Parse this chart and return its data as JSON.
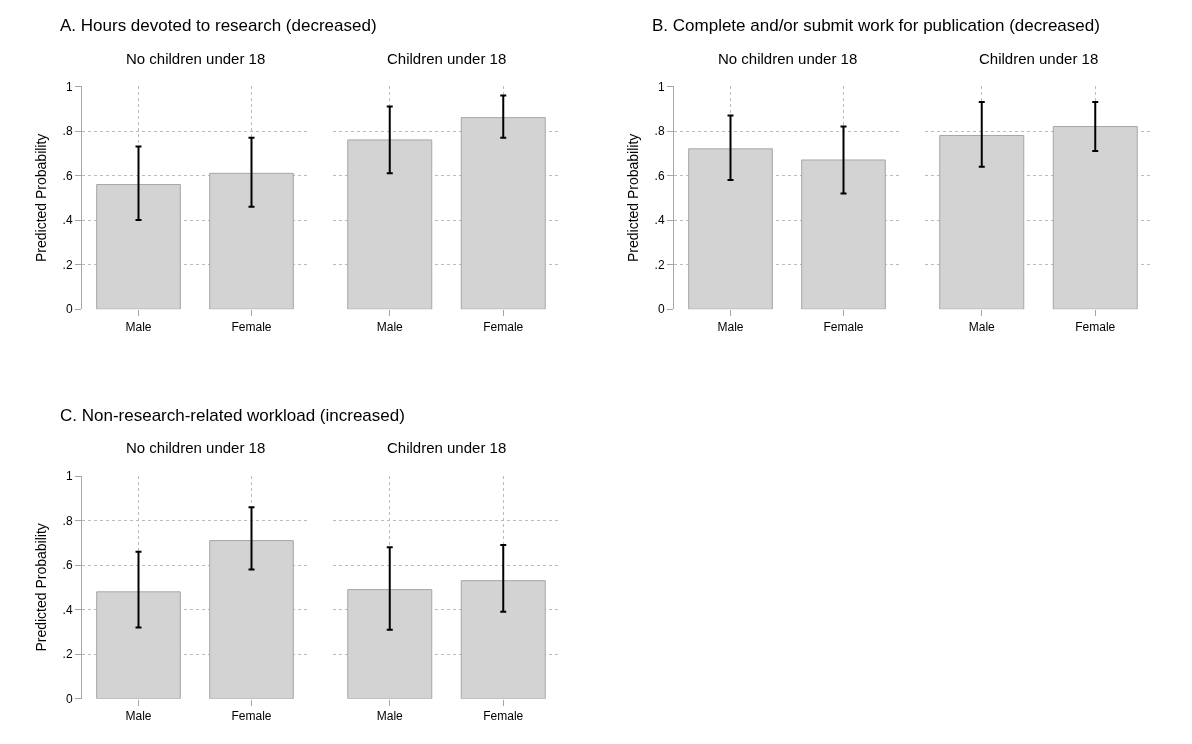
{
  "chart_data": [
    {
      "type": "bar",
      "title": "A. Hours devoted to research (decreased)",
      "subtitle": "No children under 18",
      "ylabel": "Predicted Probability",
      "categories": [
        "Male",
        "Female"
      ],
      "values": [
        0.56,
        0.61
      ],
      "errors": [
        [
          0.4,
          0.73
        ],
        [
          0.46,
          0.77
        ]
      ],
      "color": "#d3d3d3",
      "ylim": [
        0,
        1
      ],
      "yticks": [
        0,
        {
          "value": 0.2,
          "label": ".2"
        },
        {
          "value": 0.4,
          "label": ".4"
        },
        {
          "value": 0.6,
          "label": ".6"
        },
        {
          "value": 0.8,
          "label": ".8"
        },
        1
      ],
      "grid": true
    },
    {
      "type": "bar",
      "subtitle": "Children under 18",
      "categories": [
        "Male",
        "Female"
      ],
      "values": [
        0.76,
        0.86
      ],
      "errors": [
        [
          0.61,
          0.91
        ],
        [
          0.77,
          0.96
        ]
      ],
      "color": "#d3d3d3",
      "ylim": [
        0,
        1
      ],
      "yticks": [
        0,
        0.2,
        0.4,
        0.6,
        0.8,
        1
      ],
      "grid": true,
      "tick_labels": "x"
    },
    {
      "type": "bar",
      "title": "B. Complete and/or submit work for publication (decreased)",
      "subtitle": "No children under 18",
      "ylabel": "Predicted Probability",
      "categories": [
        "Male",
        "Female"
      ],
      "values": [
        0.72,
        0.67
      ],
      "errors": [
        [
          0.58,
          0.87
        ],
        [
          0.52,
          0.82
        ]
      ],
      "color": "#d3d3d3",
      "ylim": [
        0,
        1
      ],
      "yticks": [
        0,
        {
          "value": 0.2,
          "label": ".2"
        },
        {
          "value": 0.4,
          "label": ".4"
        },
        {
          "value": 0.6,
          "label": ".6"
        },
        {
          "value": 0.8,
          "label": ".8"
        },
        1
      ],
      "grid": true
    },
    {
      "type": "bar",
      "subtitle": "Children under 18",
      "categories": [
        "Male",
        "Female"
      ],
      "values": [
        0.78,
        0.82
      ],
      "errors": [
        [
          0.64,
          0.93
        ],
        [
          0.71,
          0.93
        ]
      ],
      "color": "#d3d3d3",
      "ylim": [
        0,
        1
      ],
      "yticks": [
        0,
        0.2,
        0.4,
        0.6,
        0.8,
        1
      ],
      "grid": true,
      "tick_labels": "x"
    },
    {
      "type": "bar",
      "title": "C. Non-research-related workload (increased)",
      "subtitle": "No children under 18",
      "ylabel": "Predicted Probability",
      "categories": [
        "Male",
        "Female"
      ],
      "values": [
        0.48,
        0.71
      ],
      "errors": [
        [
          0.32,
          0.66
        ],
        [
          0.58,
          0.86
        ]
      ],
      "color": "#d3d3d3",
      "ylim": [
        0,
        1
      ],
      "yticks": [
        0,
        {
          "value": 0.2,
          "label": ".2"
        },
        {
          "value": 0.4,
          "label": ".4"
        },
        {
          "value": 0.6,
          "label": ".6"
        },
        {
          "value": 0.8,
          "label": ".8"
        },
        1
      ],
      "grid": true
    },
    {
      "type": "bar",
      "subtitle": "Children under 18",
      "categories": [
        "Male",
        "Female"
      ],
      "values": [
        0.49,
        0.53
      ],
      "errors": [
        [
          0.31,
          0.68
        ],
        [
          0.39,
          0.69
        ]
      ],
      "color": "#d3d3d3",
      "ylim": [
        0,
        1
      ],
      "yticks": [
        0,
        0.2,
        0.4,
        0.6,
        0.8,
        1
      ],
      "grid": true,
      "tick_labels": "x"
    }
  ]
}
